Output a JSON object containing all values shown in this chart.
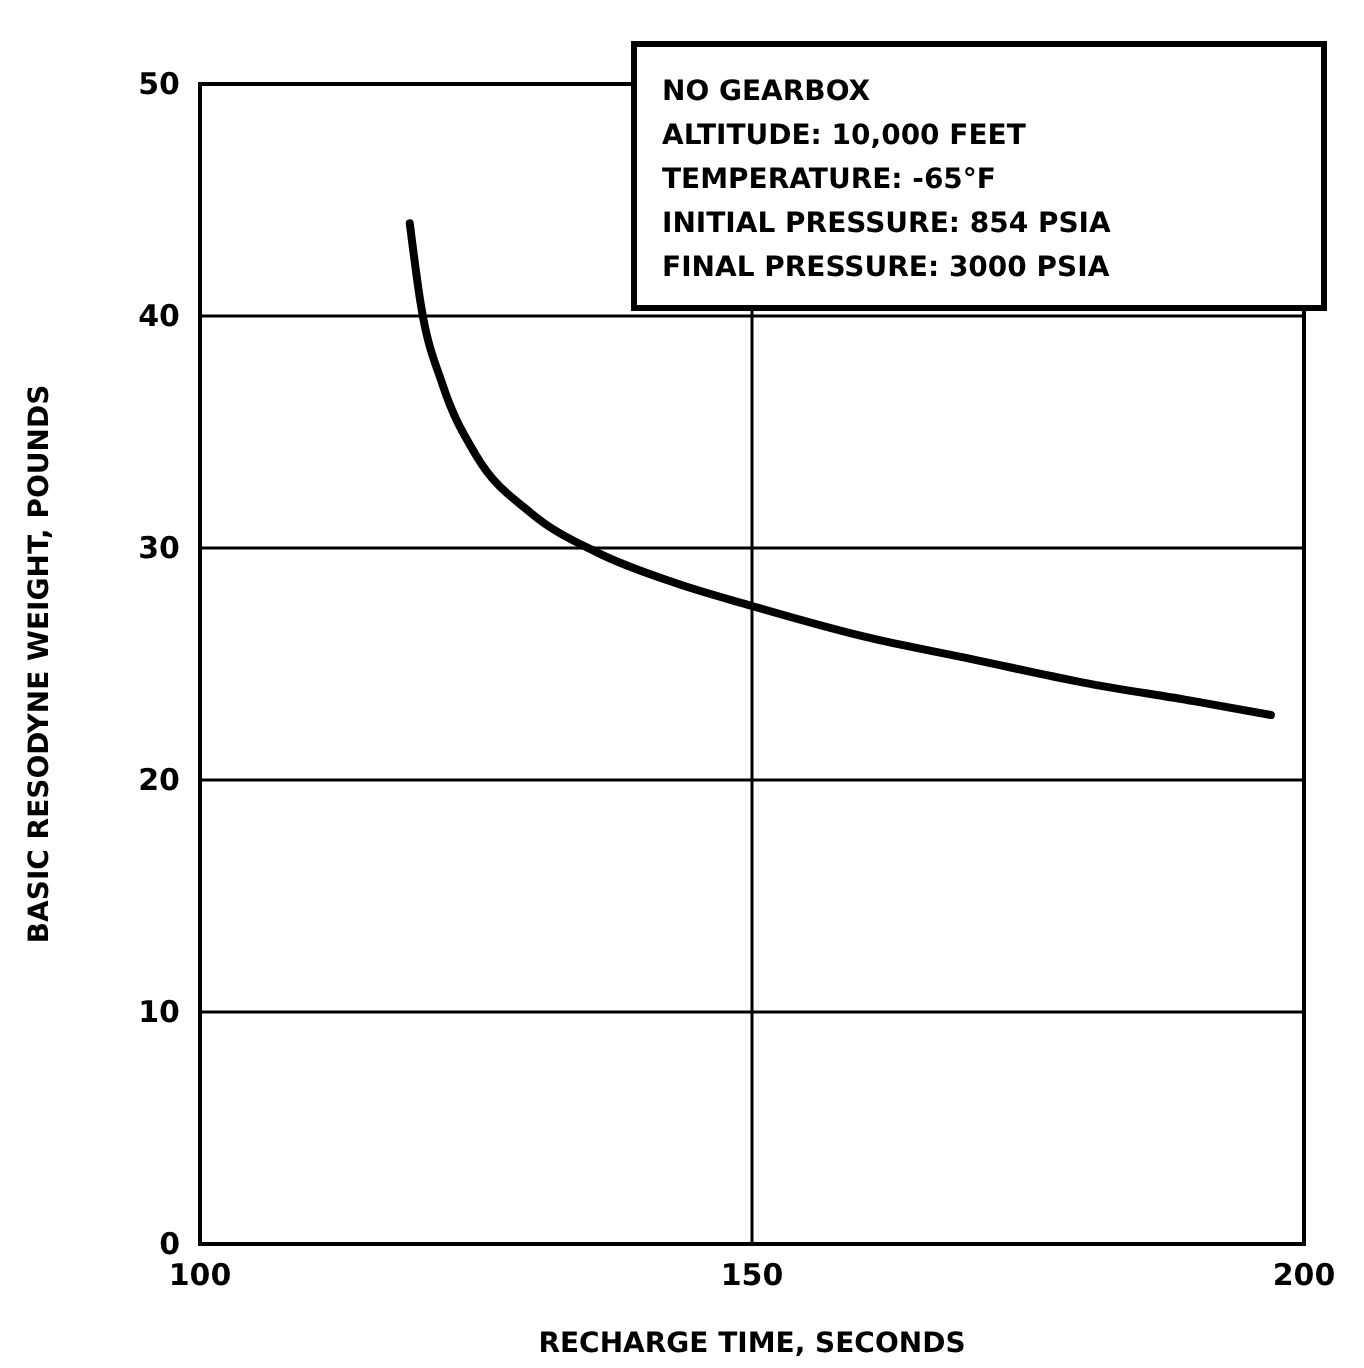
{
  "chart_data": {
    "type": "line",
    "xlabel": "RECHARGE TIME, SECONDS",
    "ylabel": "BASIC RESODYNE WEIGHT, POUNDS",
    "x": [
      119,
      120,
      122,
      125,
      130,
      136,
      143,
      150,
      160,
      170,
      180,
      190,
      197
    ],
    "series": [
      {
        "color": "#000000",
        "values": [
          44,
          40.5,
          37,
          34,
          31.5,
          29.8,
          28.5,
          27.5,
          26.2,
          25.2,
          24.2,
          23.4,
          22.8
        ]
      }
    ],
    "xlim": [
      100,
      200
    ],
    "xticks": [
      100,
      150,
      200
    ],
    "ylim": [
      0,
      50
    ],
    "yticks": [
      0,
      10,
      20,
      30,
      40,
      50
    ],
    "grid": true,
    "marker": "none",
    "line_style": "solid",
    "annotations": [
      "NO GEARBOX",
      "ALTITUDE: 10,000 FEET",
      "TEMPERATURE: -65°F",
      "INITIAL PRESSURE: 854 PSIA",
      "FINAL PRESSURE: 3000 PSIA"
    ]
  }
}
